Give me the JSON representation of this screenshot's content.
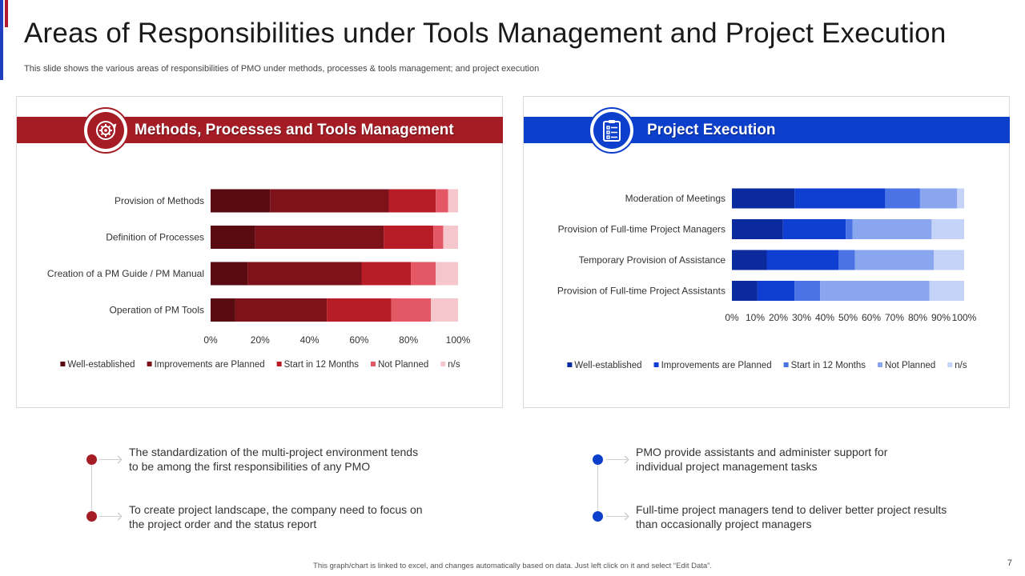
{
  "title": "Areas of Responsibilities under Tools Management and Project Execution",
  "subtitle": "This slide shows the various areas of responsibilities of PMO under methods, processes & tools management; and project execution",
  "left_panel": {
    "heading": "Methods, Processes and Tools Management",
    "icon": "gear-cycle-icon"
  },
  "right_panel": {
    "heading": "Project Execution",
    "icon": "clipboard-checklist-icon"
  },
  "chart_data": [
    {
      "type": "bar",
      "orientation": "horizontal",
      "stacked": true,
      "categories": [
        "Provision of Methods",
        "Definition of Processes",
        "Creation of a PM Guide / PM Manual",
        "Operation of PM Tools"
      ],
      "series": [
        {
          "name": "Well-established",
          "color": "#5a0b12",
          "values": [
            24,
            18,
            15,
            10
          ]
        },
        {
          "name": "Improvements are Planned",
          "color": "#7d121b",
          "values": [
            48,
            52,
            46,
            37
          ]
        },
        {
          "name": "Start in 12 Months",
          "color": "#b81d27",
          "values": [
            19,
            20,
            20,
            26
          ]
        },
        {
          "name": "Not Planned",
          "color": "#e35864",
          "values": [
            5,
            4,
            10,
            16
          ]
        },
        {
          "name": "n/s",
          "color": "#f5c6cb",
          "values": [
            4,
            6,
            9,
            11
          ]
        }
      ],
      "x_ticks": [
        "0%",
        "20%",
        "40%",
        "60%",
        "80%",
        "100%"
      ],
      "xlim": [
        0,
        100
      ],
      "legend": "bottom"
    },
    {
      "type": "bar",
      "orientation": "horizontal",
      "stacked": true,
      "categories": [
        "Moderation of Meetings",
        "Provision of Full-time Project Managers",
        "Temporary Provision of Assistance",
        "Provision of Full-time Project Assistants"
      ],
      "series": [
        {
          "name": "Well-established",
          "color": "#0b2a9e",
          "values": [
            27,
            22,
            15,
            11
          ]
        },
        {
          "name": "Improvements are Planned",
          "color": "#0f3fd0",
          "values": [
            39,
            27,
            31,
            16
          ]
        },
        {
          "name": "Start in 12 Months",
          "color": "#4a74e6",
          "values": [
            15,
            3,
            7,
            11
          ]
        },
        {
          "name": "Not Planned",
          "color": "#8aa6ef",
          "values": [
            16,
            34,
            34,
            47
          ]
        },
        {
          "name": "n/s",
          "color": "#c6d3f8",
          "values": [
            3,
            14,
            13,
            15
          ]
        }
      ],
      "x_ticks": [
        "0%",
        "10%",
        "20%",
        "30%",
        "40%",
        "50%",
        "60%",
        "70%",
        "80%",
        "90%",
        "100%"
      ],
      "xlim": [
        0,
        100
      ],
      "legend": "bottom"
    }
  ],
  "notes_left": [
    "The standardization of the multi-project environment tends to be among the first responsibilities of any PMO",
    "To create project landscape, the company need to focus on the project order and the status report"
  ],
  "notes_right": [
    "PMO provide assistants and administer support for individual project management tasks",
    "Full-time project managers tend to deliver better project results than occasionally project managers"
  ],
  "footer": "This graph/chart is linked to excel, and changes automatically based on data. Just left click on it and select “Edit Data”.",
  "page_number": "7"
}
